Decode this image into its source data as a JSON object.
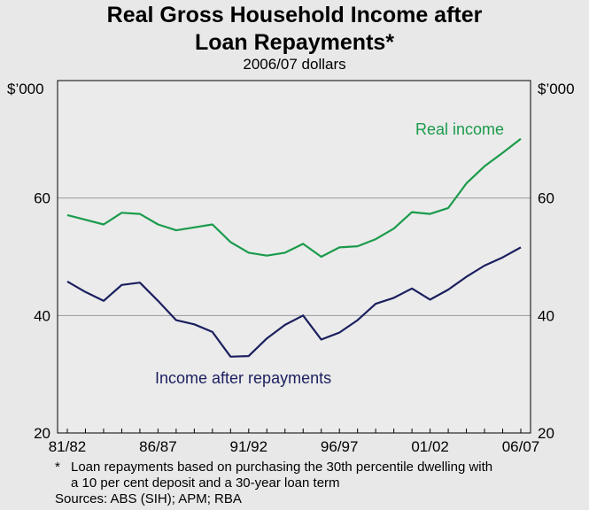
{
  "title_line1": "Real Gross Household Income after",
  "title_line2": "Loan Repayments*",
  "subtitle": "2006/07 dollars",
  "colors": {
    "real_income": "#1a9b4b",
    "after_repayments": "#1b1f5e",
    "background": "#e8e8e8",
    "plot_bg": "#ebebeb"
  },
  "footnote_marker": "*",
  "footnote_line1": "Loan repayments based on purchasing the 30th percentile dwelling with",
  "footnote_line2": "a 10 per cent deposit and a 30-year loan term",
  "sources": "Sources: ABS (SIH); APM; RBA",
  "chart_data": {
    "type": "line",
    "title": "Real Gross Household Income after Loan Repayments*",
    "subtitle": "2006/07 dollars",
    "y_unit_left": "$’000",
    "y_unit_right": "$’000",
    "ylim": [
      20,
      80
    ],
    "yticks": [
      20,
      40,
      60
    ],
    "xtick_labels": [
      "81/82",
      "86/87",
      "91/92",
      "96/97",
      "01/02",
      "06/07"
    ],
    "xtick_index": [
      0,
      5,
      10,
      15,
      20,
      25
    ],
    "grid": "horizontal",
    "x": [
      "81/82",
      "82/83",
      "83/84",
      "84/85",
      "85/86",
      "86/87",
      "87/88",
      "88/89",
      "89/90",
      "90/91",
      "91/92",
      "92/93",
      "93/94",
      "94/95",
      "95/96",
      "96/97",
      "97/98",
      "98/99",
      "99/00",
      "00/01",
      "01/02",
      "02/03",
      "03/04",
      "04/05",
      "05/06",
      "06/07"
    ],
    "series": [
      {
        "name": "Real income",
        "values": [
          57.1,
          56.3,
          55.5,
          57.5,
          57.3,
          55.5,
          54.5,
          55.0,
          55.5,
          52.5,
          50.7,
          50.2,
          50.7,
          52.2,
          50.0,
          51.6,
          51.8,
          53.0,
          54.8,
          57.6,
          57.3,
          58.3,
          62.5,
          65.4,
          67.7,
          70.1
        ]
      },
      {
        "name": "Income after repayments",
        "values": [
          45.8,
          44.0,
          42.5,
          45.2,
          45.6,
          42.5,
          39.2,
          38.5,
          37.2,
          33.0,
          33.1,
          36.1,
          38.4,
          40.0,
          35.9,
          37.1,
          39.2,
          42.0,
          43.0,
          44.6,
          42.7,
          44.4,
          46.6,
          48.5,
          49.9,
          51.6
        ]
      }
    ],
    "annotations": [
      "Real income",
      "Income after repayments"
    ]
  }
}
